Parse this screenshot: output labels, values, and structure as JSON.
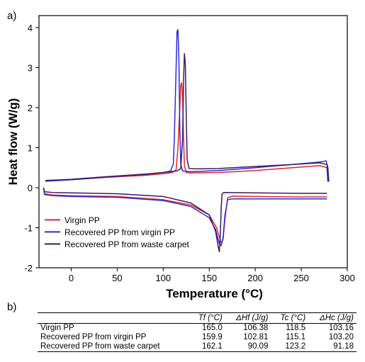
{
  "panel_a_label": "a)",
  "panel_b_label": "b)",
  "colors": {
    "virgin": "#e0252b",
    "recovered_virgin": "#2b2bd9",
    "recovered_carpet": "#3b1b5e",
    "axis": "#000000"
  },
  "chart_data": {
    "type": "line",
    "xlabel": "Temperature (°C)",
    "ylabel": "Heat flow (W/g)",
    "xlim": [
      -35,
      300
    ],
    "ylim": [
      -2,
      4.3
    ],
    "xticks": [
      0,
      50,
      100,
      150,
      200,
      250,
      300
    ],
    "yticks": [
      -2,
      -1,
      0,
      1,
      2,
      3,
      4
    ],
    "grid": false,
    "legend_position": "bottom-left",
    "series": [
      {
        "name": "Virgin PP",
        "color": "#e0252b",
        "heating": [
          [
            -28,
            0.17
          ],
          [
            0,
            0.2
          ],
          [
            40,
            0.26
          ],
          [
            80,
            0.31
          ],
          [
            100,
            0.35
          ],
          [
            110,
            0.38
          ],
          [
            114,
            0.45
          ],
          [
            116,
            1.0
          ],
          [
            118,
            2.0
          ],
          [
            119,
            2.55
          ],
          [
            120,
            2.62
          ],
          [
            121,
            2.3
          ],
          [
            122,
            1.3
          ],
          [
            123,
            0.55
          ],
          [
            125,
            0.38
          ],
          [
            130,
            0.37
          ],
          [
            160,
            0.38
          ],
          [
            200,
            0.43
          ],
          [
            240,
            0.5
          ],
          [
            270,
            0.55
          ],
          [
            278,
            0.5
          ],
          [
            279,
            0.15
          ]
        ],
        "cooling": [
          [
            -30,
            0.0
          ],
          [
            -29,
            -0.15
          ],
          [
            -20,
            -0.18
          ],
          [
            0,
            -0.2
          ],
          [
            50,
            -0.22
          ],
          [
            100,
            -0.3
          ],
          [
            130,
            -0.43
          ],
          [
            150,
            -0.68
          ],
          [
            158,
            -1.0
          ],
          [
            163,
            -1.38
          ],
          [
            165,
            -1.3
          ],
          [
            167,
            -0.8
          ],
          [
            170,
            -0.25
          ],
          [
            175,
            -0.21
          ],
          [
            200,
            -0.22
          ],
          [
            250,
            -0.23
          ],
          [
            278,
            -0.23
          ]
        ]
      },
      {
        "name": "Recovered PP from virgin PP",
        "color": "#2b2bd9",
        "heating": [
          [
            -28,
            0.16
          ],
          [
            0,
            0.2
          ],
          [
            40,
            0.27
          ],
          [
            80,
            0.33
          ],
          [
            100,
            0.38
          ],
          [
            108,
            0.42
          ],
          [
            111,
            0.6
          ],
          [
            112,
            1.2
          ],
          [
            114,
            3.0
          ],
          [
            115,
            3.9
          ],
          [
            116,
            3.95
          ],
          [
            117,
            3.2
          ],
          [
            118,
            1.5
          ],
          [
            119,
            0.6
          ],
          [
            121,
            0.42
          ],
          [
            130,
            0.4
          ],
          [
            160,
            0.43
          ],
          [
            200,
            0.5
          ],
          [
            240,
            0.58
          ],
          [
            270,
            0.64
          ],
          [
            277,
            0.67
          ],
          [
            279,
            0.5
          ],
          [
            280,
            0.15
          ]
        ],
        "cooling": [
          [
            -30,
            0.0
          ],
          [
            -29,
            -0.17
          ],
          [
            -20,
            -0.2
          ],
          [
            0,
            -0.22
          ],
          [
            50,
            -0.24
          ],
          [
            100,
            -0.32
          ],
          [
            130,
            -0.47
          ],
          [
            150,
            -0.75
          ],
          [
            157,
            -1.05
          ],
          [
            161,
            -1.4
          ],
          [
            163,
            -1.45
          ],
          [
            165,
            -1.25
          ],
          [
            167,
            -0.7
          ],
          [
            170,
            -0.3
          ],
          [
            175,
            -0.28
          ],
          [
            200,
            -0.28
          ],
          [
            250,
            -0.28
          ],
          [
            278,
            -0.28
          ]
        ]
      },
      {
        "name": "Recovered PP from waste carpet",
        "color": "#3b1b5e",
        "heating": [
          [
            -28,
            0.18
          ],
          [
            0,
            0.21
          ],
          [
            40,
            0.28
          ],
          [
            80,
            0.34
          ],
          [
            100,
            0.38
          ],
          [
            115,
            0.42
          ],
          [
            119,
            0.48
          ],
          [
            121,
            1.2
          ],
          [
            122,
            2.6
          ],
          [
            123,
            3.35
          ],
          [
            124,
            3.1
          ],
          [
            125,
            1.8
          ],
          [
            126,
            0.7
          ],
          [
            128,
            0.48
          ],
          [
            135,
            0.47
          ],
          [
            160,
            0.48
          ],
          [
            200,
            0.53
          ],
          [
            240,
            0.58
          ],
          [
            270,
            0.62
          ],
          [
            278,
            0.58
          ],
          [
            279,
            0.15
          ]
        ],
        "cooling": [
          [
            -30,
            0.0
          ],
          [
            -29,
            -0.1
          ],
          [
            -20,
            -0.12
          ],
          [
            0,
            -0.13
          ],
          [
            50,
            -0.15
          ],
          [
            100,
            -0.22
          ],
          [
            130,
            -0.38
          ],
          [
            150,
            -0.68
          ],
          [
            157,
            -1.1
          ],
          [
            160,
            -1.5
          ],
          [
            161,
            -1.6
          ],
          [
            162,
            -1.2
          ],
          [
            163,
            -0.5
          ],
          [
            164,
            -0.15
          ],
          [
            166,
            -0.12
          ],
          [
            200,
            -0.13
          ],
          [
            250,
            -0.14
          ],
          [
            278,
            -0.14
          ]
        ]
      }
    ]
  },
  "table": {
    "headers": [
      "",
      "Tf (°C)",
      "ΔHf (J/g)",
      "Tc (°C)",
      "ΔHc (J/g)"
    ],
    "rows": [
      [
        "Virgin PP",
        "165.0",
        "106.38",
        "118.5",
        "103.16"
      ],
      [
        "Recovered PP from virgin PP",
        "159.9",
        "102.81",
        "115.1",
        "103.20"
      ],
      [
        "Recovered PP from waste carpet",
        "162.1",
        "90.09",
        "123.2",
        "91.18"
      ]
    ]
  }
}
